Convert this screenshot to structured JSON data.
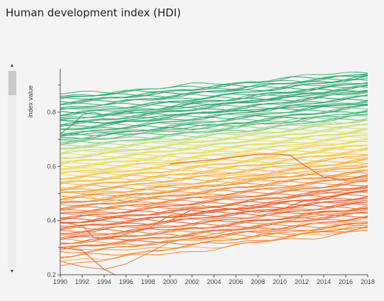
{
  "page": {
    "title": "Human development index (HDI)"
  },
  "scrollbar": {
    "up_arrow": "▲",
    "down_arrow": "▼"
  },
  "chart_data": {
    "type": "line",
    "title": "Human development index (HDI)",
    "xlabel": "",
    "ylabel": "Index value",
    "xlim": [
      1990,
      2018
    ],
    "ylim": [
      0.2,
      0.96
    ],
    "x_ticks": [
      1990,
      1992,
      1994,
      1996,
      1998,
      2000,
      2002,
      2004,
      2006,
      2008,
      2010,
      2012,
      2014,
      2016,
      2018
    ],
    "y_ticks": [
      0.2,
      0.4,
      0.6,
      0.8
    ],
    "y_tick_labels": [
      "0.2",
      "0.4",
      "0.6",
      "0.8"
    ],
    "grid": false,
    "legend": "none",
    "color_scale": {
      "low": "#e8582a",
      "mid": "#f5e04a",
      "high": "#21a86e"
    },
    "series": [
      {
        "start": 0.865,
        "end": 0.95,
        "color": "#3fb277"
      },
      {
        "start": 0.86,
        "end": 0.945,
        "color": "#35ab72"
      },
      {
        "start": 0.855,
        "end": 0.94,
        "color": "#3bb074"
      },
      {
        "start": 0.85,
        "end": 0.935,
        "color": "#2ea56e"
      },
      {
        "start": 0.845,
        "end": 0.93,
        "color": "#41b37a"
      },
      {
        "start": 0.84,
        "end": 0.93,
        "color": "#22a06a"
      },
      {
        "start": 0.835,
        "end": 0.925,
        "color": "#37ae75"
      },
      {
        "start": 0.83,
        "end": 0.92,
        "color": "#2aa36d"
      },
      {
        "start": 0.825,
        "end": 0.915,
        "color": "#45b57b"
      },
      {
        "start": 0.82,
        "end": 0.91,
        "color": "#30a870"
      },
      {
        "start": 0.81,
        "end": 0.905,
        "color": "#28a26c"
      },
      {
        "start": 0.805,
        "end": 0.9,
        "color": "#3cb176"
      },
      {
        "start": 0.8,
        "end": 0.9,
        "color": "#21a069"
      },
      {
        "start": 0.795,
        "end": 0.895,
        "color": "#4ab87d"
      },
      {
        "start": 0.79,
        "end": 0.89,
        "color": "#33aa71"
      },
      {
        "start": 0.785,
        "end": 0.885,
        "color": "#29a36c"
      },
      {
        "start": 0.78,
        "end": 0.88,
        "color": "#44b47a"
      },
      {
        "start": 0.775,
        "end": 0.875,
        "color": "#2fa76f"
      },
      {
        "start": 0.77,
        "end": 0.87,
        "color": "#52bb80"
      },
      {
        "start": 0.765,
        "end": 0.865,
        "color": "#24a16a"
      },
      {
        "start": 0.76,
        "end": 0.86,
        "color": "#3aae75"
      },
      {
        "start": 0.755,
        "end": 0.855,
        "color": "#58be83"
      },
      {
        "start": 0.75,
        "end": 0.85,
        "color": "#2da66e"
      },
      {
        "start": 0.745,
        "end": 0.845,
        "color": "#46b67c"
      },
      {
        "start": 0.74,
        "end": 0.84,
        "color": "#27a26b"
      },
      {
        "start": 0.735,
        "end": 0.835,
        "color": "#5fc186"
      },
      {
        "start": 0.73,
        "end": 0.83,
        "color": "#34ab72"
      },
      {
        "start": 0.725,
        "end": 0.825,
        "color": "#4db87e"
      },
      {
        "start": 0.72,
        "end": 0.82,
        "color": "#2ba56d"
      },
      {
        "start": 0.715,
        "end": 0.815,
        "color": "#66c388"
      },
      {
        "start": 0.71,
        "end": 0.81,
        "color": "#39ad74"
      },
      {
        "start": 0.705,
        "end": 0.805,
        "color": "#22a069"
      },
      {
        "start": 0.7,
        "end": 0.8,
        "color": "#6fc68b"
      },
      {
        "start": 0.71,
        "end": 0.79,
        "color": "#3db175"
      },
      {
        "start": 0.695,
        "end": 0.795,
        "color": "#7dca8c"
      },
      {
        "start": 0.69,
        "end": 0.79,
        "color": "#4fb97f"
      },
      {
        "start": 0.685,
        "end": 0.785,
        "color": "#8ccf8a"
      },
      {
        "start": 0.68,
        "end": 0.78,
        "color": "#61c186"
      },
      {
        "start": 0.675,
        "end": 0.775,
        "color": "#9ad386"
      },
      {
        "start": 0.67,
        "end": 0.77,
        "color": "#a9d883"
      },
      {
        "start": 0.665,
        "end": 0.765,
        "color": "#b7dc7e"
      },
      {
        "start": 0.66,
        "end": 0.76,
        "color": "#c3df78"
      },
      {
        "start": 0.655,
        "end": 0.755,
        "color": "#d0e272"
      },
      {
        "start": 0.65,
        "end": 0.75,
        "color": "#dae56a"
      },
      {
        "start": 0.645,
        "end": 0.745,
        "color": "#c7e075"
      },
      {
        "start": 0.64,
        "end": 0.74,
        "color": "#e2e564"
      },
      {
        "start": 0.635,
        "end": 0.735,
        "color": "#b1da80"
      },
      {
        "start": 0.63,
        "end": 0.73,
        "color": "#e8e35c"
      },
      {
        "start": 0.625,
        "end": 0.725,
        "color": "#d6e36e"
      },
      {
        "start": 0.62,
        "end": 0.72,
        "color": "#ede056"
      },
      {
        "start": 0.615,
        "end": 0.715,
        "color": "#cde273"
      },
      {
        "start": 0.61,
        "end": 0.71,
        "color": "#f0dc50"
      },
      {
        "start": 0.605,
        "end": 0.705,
        "color": "#e4e562"
      },
      {
        "start": 0.6,
        "end": 0.7,
        "color": "#f2d84c"
      },
      {
        "start": 0.595,
        "end": 0.695,
        "color": "#dfe567"
      },
      {
        "start": 0.59,
        "end": 0.69,
        "color": "#f3d449"
      },
      {
        "start": 0.585,
        "end": 0.685,
        "color": "#eae15a"
      },
      {
        "start": 0.58,
        "end": 0.68,
        "color": "#f4cf46"
      },
      {
        "start": 0.575,
        "end": 0.675,
        "color": "#f1db4f"
      },
      {
        "start": 0.57,
        "end": 0.67,
        "color": "#f5ca44"
      },
      {
        "start": 0.565,
        "end": 0.665,
        "color": "#f3d64b"
      },
      {
        "start": 0.56,
        "end": 0.66,
        "color": "#f5c443"
      },
      {
        "start": 0.555,
        "end": 0.655,
        "color": "#f4d248"
      },
      {
        "start": 0.55,
        "end": 0.65,
        "color": "#f5be42"
      },
      {
        "start": 0.545,
        "end": 0.645,
        "color": "#f4cc45"
      },
      {
        "start": 0.54,
        "end": 0.64,
        "color": "#f5b841"
      },
      {
        "start": 0.535,
        "end": 0.635,
        "color": "#f5c644"
      },
      {
        "start": 0.53,
        "end": 0.63,
        "color": "#f5b240"
      },
      {
        "start": 0.525,
        "end": 0.625,
        "color": "#f5c043"
      },
      {
        "start": 0.52,
        "end": 0.62,
        "color": "#f4ab3f"
      },
      {
        "start": 0.515,
        "end": 0.615,
        "color": "#f5ba42"
      },
      {
        "start": 0.51,
        "end": 0.61,
        "color": "#f4a43d"
      },
      {
        "start": 0.505,
        "end": 0.6,
        "color": "#f5b441"
      },
      {
        "start": 0.5,
        "end": 0.595,
        "color": "#f39d3b"
      },
      {
        "start": 0.495,
        "end": 0.59,
        "color": "#f5ae40"
      },
      {
        "start": 0.49,
        "end": 0.585,
        "color": "#f2963a"
      },
      {
        "start": 0.485,
        "end": 0.58,
        "color": "#f4a73e"
      },
      {
        "start": 0.48,
        "end": 0.575,
        "color": "#f18f38"
      },
      {
        "start": 0.475,
        "end": 0.57,
        "color": "#f3a03c"
      },
      {
        "start": 0.47,
        "end": 0.565,
        "color": "#f08837"
      },
      {
        "start": 0.465,
        "end": 0.56,
        "color": "#f2993b"
      },
      {
        "start": 0.46,
        "end": 0.555,
        "color": "#ef8135"
      },
      {
        "start": 0.455,
        "end": 0.55,
        "color": "#f19239"
      },
      {
        "start": 0.45,
        "end": 0.545,
        "color": "#ee7a34"
      },
      {
        "start": 0.445,
        "end": 0.54,
        "color": "#f08b38"
      },
      {
        "start": 0.44,
        "end": 0.535,
        "color": "#ed7333"
      },
      {
        "start": 0.435,
        "end": 0.53,
        "color": "#ef8436"
      },
      {
        "start": 0.43,
        "end": 0.525,
        "color": "#ec6c31"
      },
      {
        "start": 0.425,
        "end": 0.52,
        "color": "#ee7d35"
      },
      {
        "start": 0.42,
        "end": 0.515,
        "color": "#eb6630"
      },
      {
        "start": 0.415,
        "end": 0.51,
        "color": "#ed7634"
      },
      {
        "start": 0.41,
        "end": 0.5,
        "color": "#ea602f"
      },
      {
        "start": 0.405,
        "end": 0.495,
        "color": "#ec7032"
      },
      {
        "start": 0.4,
        "end": 0.49,
        "color": "#e95a2e"
      },
      {
        "start": 0.395,
        "end": 0.485,
        "color": "#eb6a31"
      },
      {
        "start": 0.39,
        "end": 0.48,
        "color": "#e8562d"
      },
      {
        "start": 0.385,
        "end": 0.475,
        "color": "#ea6430"
      },
      {
        "start": 0.38,
        "end": 0.47,
        "color": "#e8582d"
      },
      {
        "start": 0.375,
        "end": 0.465,
        "color": "#ec6e32"
      },
      {
        "start": 0.37,
        "end": 0.46,
        "color": "#e95c2e"
      },
      {
        "start": 0.365,
        "end": 0.455,
        "color": "#ee7a34"
      },
      {
        "start": 0.36,
        "end": 0.45,
        "color": "#ea602f"
      },
      {
        "start": 0.355,
        "end": 0.445,
        "color": "#f08536"
      },
      {
        "start": 0.35,
        "end": 0.44,
        "color": "#eb6630"
      },
      {
        "start": 0.345,
        "end": 0.435,
        "color": "#ed7333"
      },
      {
        "start": 0.34,
        "end": 0.43,
        "color": "#e95a2e"
      },
      {
        "start": 0.335,
        "end": 0.425,
        "color": "#ef8136"
      },
      {
        "start": 0.33,
        "end": 0.42,
        "color": "#ec6c31"
      },
      {
        "start": 0.325,
        "end": 0.415,
        "color": "#f18f38"
      },
      {
        "start": 0.32,
        "end": 0.41,
        "color": "#ee7a34"
      },
      {
        "start": 0.315,
        "end": 0.405,
        "color": "#e8582d"
      },
      {
        "start": 0.31,
        "end": 0.4,
        "color": "#f39d3b"
      },
      {
        "start": 0.305,
        "end": 0.395,
        "color": "#ed7634"
      },
      {
        "start": 0.3,
        "end": 0.39,
        "color": "#ea602f"
      },
      {
        "start": 0.295,
        "end": 0.385,
        "color": "#f08837"
      },
      {
        "start": 0.29,
        "end": 0.38,
        "color": "#f4ab3f"
      },
      {
        "start": 0.285,
        "end": 0.375,
        "color": "#ec6e32"
      },
      {
        "start": 0.27,
        "end": 0.38,
        "color": "#f39a3b"
      },
      {
        "start": 0.26,
        "end": 0.375,
        "color": "#ee7d35"
      },
      {
        "start": 0.25,
        "end": 0.37,
        "color": "#f5b240"
      },
      {
        "start": 0.24,
        "end": 0.365,
        "color": "#f08537"
      }
    ],
    "highlight_series": [
      {
        "color": "#21a069",
        "points": [
          [
            1990,
            0.77
          ],
          [
            1992,
            0.765
          ],
          [
            1994,
            0.76
          ],
          [
            1996,
            0.77
          ],
          [
            1998,
            0.78
          ],
          [
            2000,
            0.79
          ],
          [
            2004,
            0.8
          ],
          [
            2008,
            0.81
          ],
          [
            2012,
            0.82
          ],
          [
            2018,
            0.83
          ]
        ]
      },
      {
        "color": "#2aa36d",
        "points": [
          [
            1990,
            0.72
          ],
          [
            1991,
            0.75
          ],
          [
            1992,
            0.79
          ],
          [
            1993,
            0.8
          ],
          [
            1994,
            0.79
          ],
          [
            1996,
            0.795
          ],
          [
            2000,
            0.81
          ],
          [
            2004,
            0.83
          ],
          [
            2008,
            0.845
          ],
          [
            2012,
            0.86
          ],
          [
            2018,
            0.88
          ]
        ]
      },
      {
        "color": "#e8582d",
        "points": [
          [
            2000,
            0.61
          ],
          [
            2004,
            0.625
          ],
          [
            2006,
            0.635
          ],
          [
            2008,
            0.645
          ],
          [
            2010,
            0.645
          ],
          [
            2011,
            0.64
          ],
          [
            2012,
            0.61
          ],
          [
            2014,
            0.56
          ],
          [
            2016,
            0.55
          ],
          [
            2018,
            0.57
          ]
        ]
      },
      {
        "color": "#ec6c31",
        "points": [
          [
            1990,
            0.395
          ],
          [
            1992,
            0.38
          ],
          [
            1993,
            0.34
          ],
          [
            1994,
            0.33
          ],
          [
            1996,
            0.35
          ],
          [
            1998,
            0.37
          ],
          [
            2000,
            0.42
          ],
          [
            2004,
            0.43
          ],
          [
            2008,
            0.46
          ],
          [
            2012,
            0.49
          ],
          [
            2018,
            0.52
          ]
        ]
      },
      {
        "color": "#f08537",
        "points": [
          [
            1990,
            0.25
          ],
          [
            1992,
            0.23
          ],
          [
            1994,
            0.22
          ],
          [
            1996,
            0.24
          ],
          [
            1998,
            0.28
          ],
          [
            2000,
            0.32
          ],
          [
            2004,
            0.35
          ],
          [
            2008,
            0.38
          ],
          [
            2012,
            0.41
          ],
          [
            2018,
            0.44
          ]
        ]
      },
      {
        "color": "#f5b240",
        "points": [
          [
            1990,
            0.51
          ],
          [
            1992,
            0.5
          ],
          [
            1994,
            0.47
          ],
          [
            1996,
            0.48
          ],
          [
            1998,
            0.5
          ],
          [
            2000,
            0.51
          ],
          [
            2004,
            0.53
          ],
          [
            2008,
            0.56
          ],
          [
            2012,
            0.58
          ],
          [
            2018,
            0.61
          ]
        ]
      },
      {
        "color": "#e95a2e",
        "points": [
          [
            1990,
            0.3
          ],
          [
            1992,
            0.29
          ],
          [
            1994,
            0.22
          ],
          [
            1995,
            0.2
          ]
        ]
      },
      {
        "color": "#ea602f",
        "points": [
          [
            2000,
            0.4
          ],
          [
            2002,
            0.44
          ],
          [
            2004,
            0.45
          ],
          [
            2008,
            0.43
          ],
          [
            2010,
            0.44
          ],
          [
            2012,
            0.47
          ],
          [
            2016,
            0.5
          ],
          [
            2018,
            0.51
          ]
        ]
      }
    ]
  }
}
